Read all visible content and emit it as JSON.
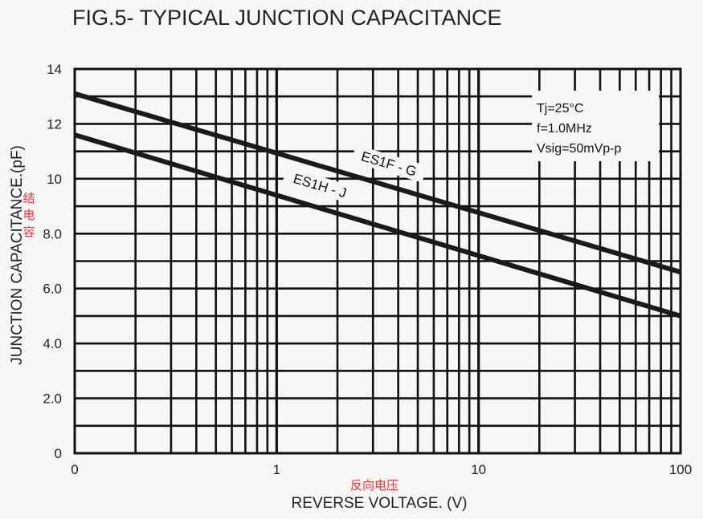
{
  "chart_data": {
    "type": "line",
    "title": "FIG.5- TYPICAL JUNCTION CAPACITANCE",
    "xlabel": "REVERSE VOLTAGE. (V)",
    "xlabel_annotation": "反向电压",
    "ylabel": "JUNCTION CAPACITANCE.(pF)",
    "ylabel_annotation": "结电容",
    "x_scale": "log",
    "xlim": [
      0.1,
      100
    ],
    "ylim": [
      0,
      14
    ],
    "grid": true,
    "x_ticks": [
      {
        "value": 0.1,
        "label": "0"
      },
      {
        "value": 1,
        "label": "1"
      },
      {
        "value": 10,
        "label": "10"
      },
      {
        "value": 100,
        "label": "100"
      }
    ],
    "y_ticks": [
      {
        "value": 0,
        "label": "0"
      },
      {
        "value": 2,
        "label": "2.0"
      },
      {
        "value": 4,
        "label": "4.0"
      },
      {
        "value": 6,
        "label": "6.0"
      },
      {
        "value": 8,
        "label": "8.0"
      },
      {
        "value": 10,
        "label": "10"
      },
      {
        "value": 12,
        "label": "12"
      },
      {
        "value": 14,
        "label": "14"
      }
    ],
    "conditions": [
      "Tj=25°C",
      "f=1.0MHz",
      "Vsig=50mVp-p"
    ],
    "series": [
      {
        "name": "ES1F - G",
        "x": [
          0.1,
          100
        ],
        "y": [
          13.1,
          6.6
        ],
        "color": "#1a1a1a"
      },
      {
        "name": "ES1H - J",
        "x": [
          0.1,
          100
        ],
        "y": [
          11.6,
          5.0
        ],
        "color": "#1a1a1a"
      }
    ]
  }
}
